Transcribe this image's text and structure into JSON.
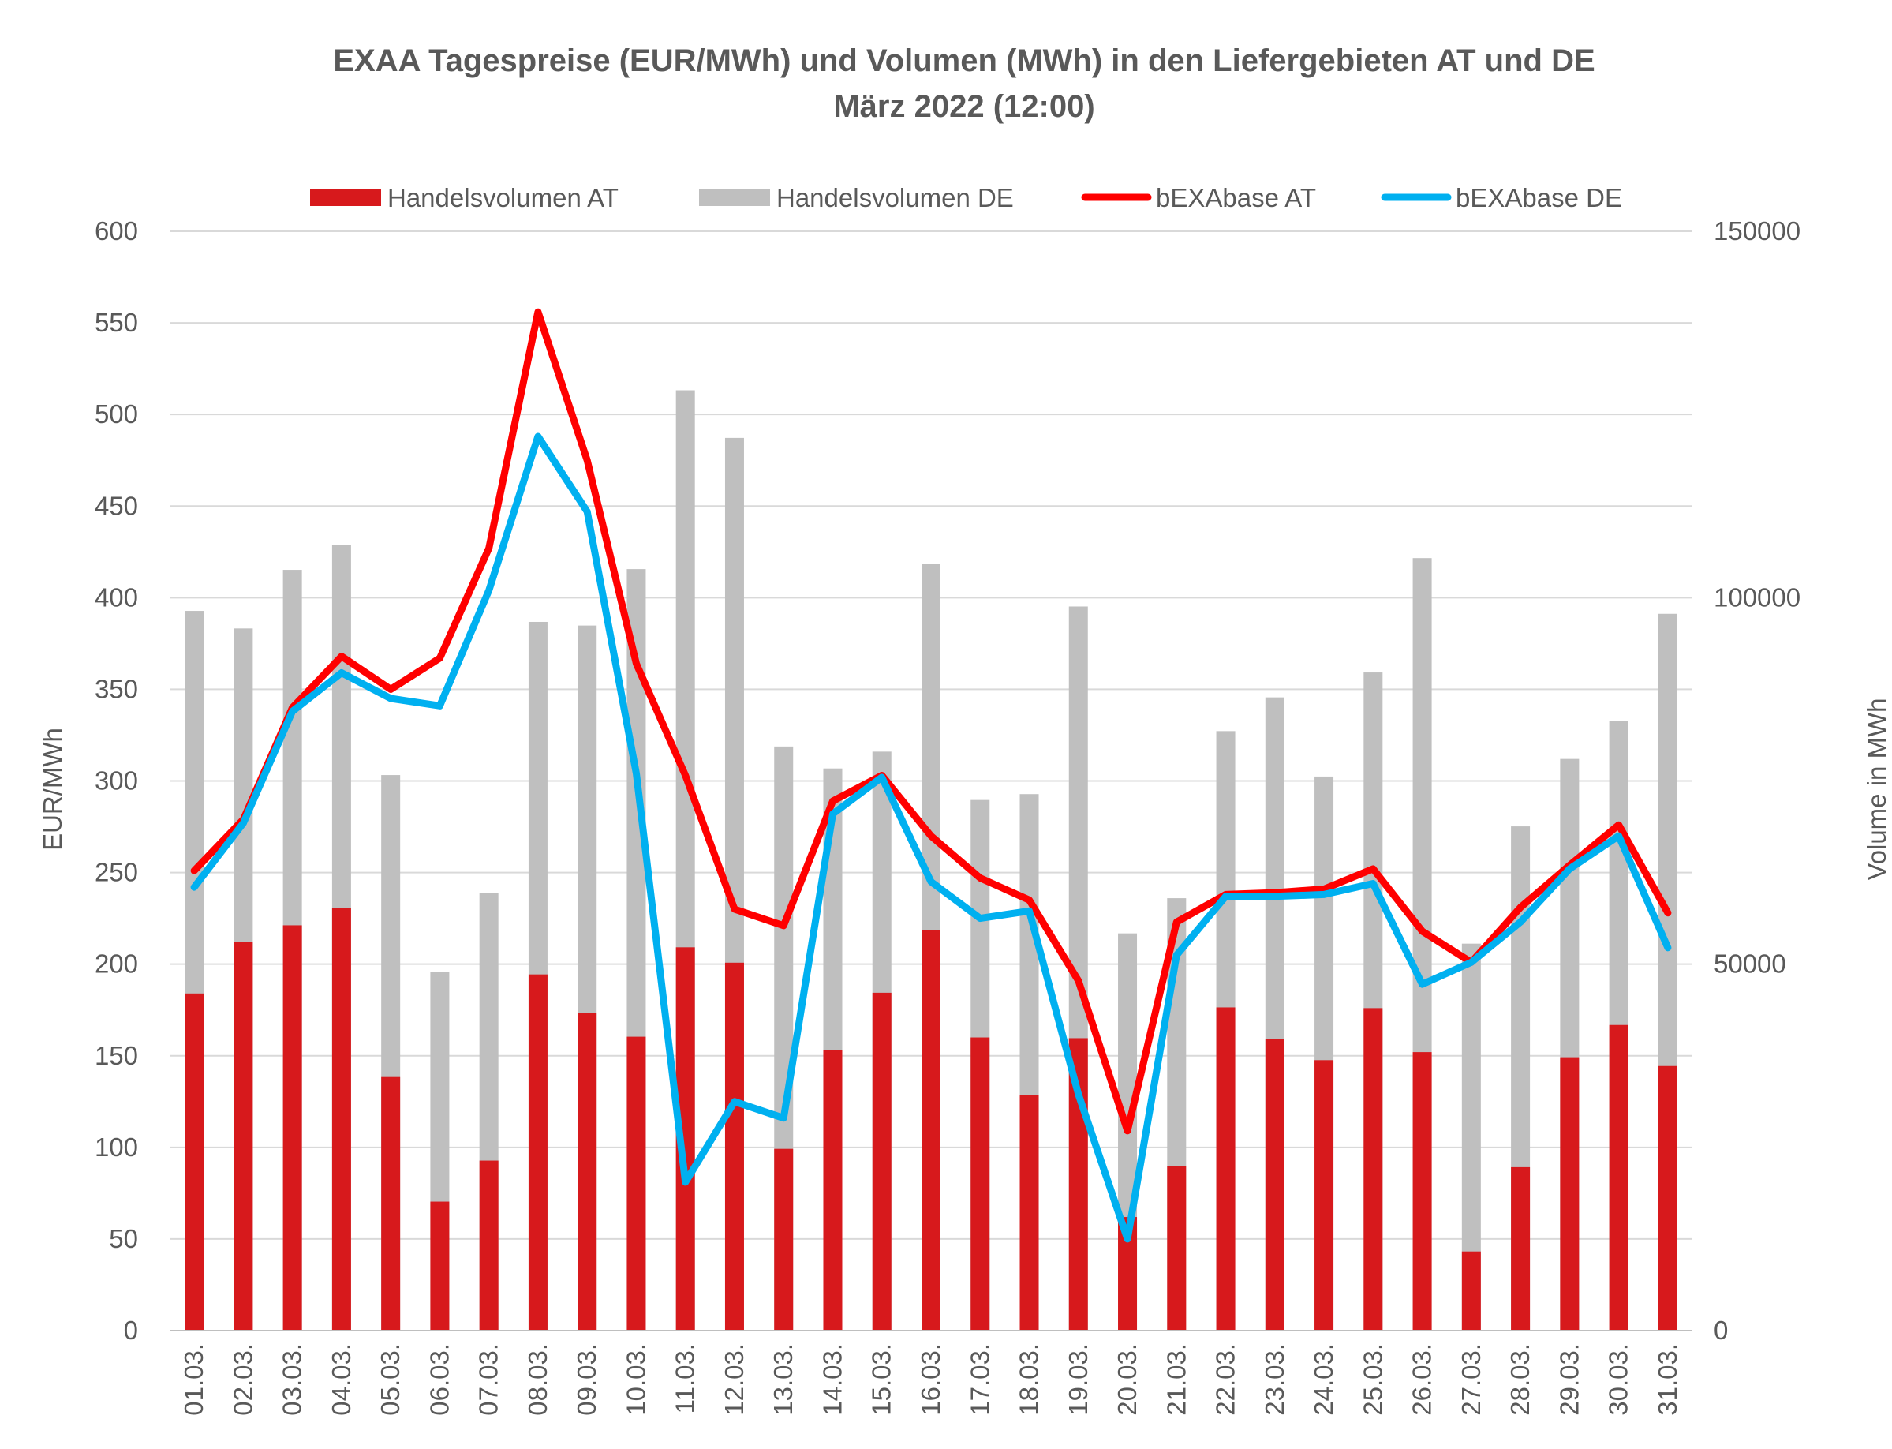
{
  "chart_data": {
    "type": "bar",
    "title": "EXAA Tagespreise (EUR/MWh) und Volumen (MWh) in den Liefergebieten AT und DE",
    "subtitle": "März 2022 (12:00)",
    "ylabel": "EUR/MWh",
    "y2label": "Volume in MWh",
    "ylim": [
      0,
      600
    ],
    "yticks": [
      0,
      50,
      100,
      150,
      200,
      250,
      300,
      350,
      400,
      450,
      500,
      550,
      600
    ],
    "y2lim": [
      0,
      150000
    ],
    "y2ticks": [
      0,
      50000,
      100000,
      150000
    ],
    "grid": true,
    "legend_position": "top",
    "categories": [
      "01.03.",
      "02.03.",
      "03.03.",
      "04.03.",
      "05.03.",
      "06.03.",
      "07.03.",
      "08.03.",
      "09.03.",
      "10.03.",
      "11.03.",
      "12.03.",
      "13.03.",
      "14.03.",
      "15.03.",
      "16.03.",
      "17.03.",
      "18.03.",
      "19.03.",
      "20.03.",
      "21.03.",
      "22.03.",
      "23.03.",
      "24.03.",
      "25.03.",
      "26.03.",
      "27.03.",
      "28.03.",
      "29.03.",
      "30.03.",
      "31.03."
    ],
    "series": [
      {
        "name": "Handelsvolumen AT",
        "type": "bar",
        "axis": "right",
        "color": "#d7191c",
        "values": [
          46000,
          53000,
          55300,
          57700,
          34600,
          17600,
          23200,
          48600,
          43300,
          40100,
          52300,
          50200,
          24800,
          38300,
          46100,
          54700,
          40000,
          32100,
          39900,
          15500,
          22500,
          44100,
          39800,
          36900,
          44000,
          38000,
          10800,
          22300,
          37300,
          41700,
          36100
        ]
      },
      {
        "name": "Handelsvolumen DE",
        "type": "bar",
        "axis": "right",
        "color": "#bfbfbf",
        "values": [
          98200,
          95800,
          103800,
          107200,
          75800,
          48900,
          59700,
          96700,
          96200,
          103900,
          128300,
          121800,
          79700,
          76700,
          79000,
          104600,
          72400,
          73200,
          98800,
          54200,
          59000,
          81800,
          86400,
          75600,
          89800,
          105400,
          52800,
          68800,
          78000,
          83200,
          97800
        ]
      },
      {
        "name": "bEXAbase AT",
        "type": "line",
        "axis": "left",
        "color": "#ff0000",
        "values": [
          251,
          279,
          340,
          368,
          350,
          367,
          427,
          556,
          475,
          364,
          303,
          230,
          221,
          289,
          303,
          270,
          247,
          235,
          191,
          109,
          223,
          238,
          239,
          241,
          252,
          218,
          201,
          231,
          254,
          276,
          228
        ]
      },
      {
        "name": "bEXAbase DE",
        "type": "line",
        "axis": "left",
        "color": "#00b0f0",
        "values": [
          242,
          277,
          338,
          359,
          345,
          341,
          404,
          488,
          447,
          304,
          81,
          125,
          116,
          282,
          302,
          245,
          225,
          229,
          129,
          50,
          205,
          237,
          237,
          238,
          244,
          189,
          201,
          223,
          252,
          270,
          209
        ]
      }
    ]
  }
}
